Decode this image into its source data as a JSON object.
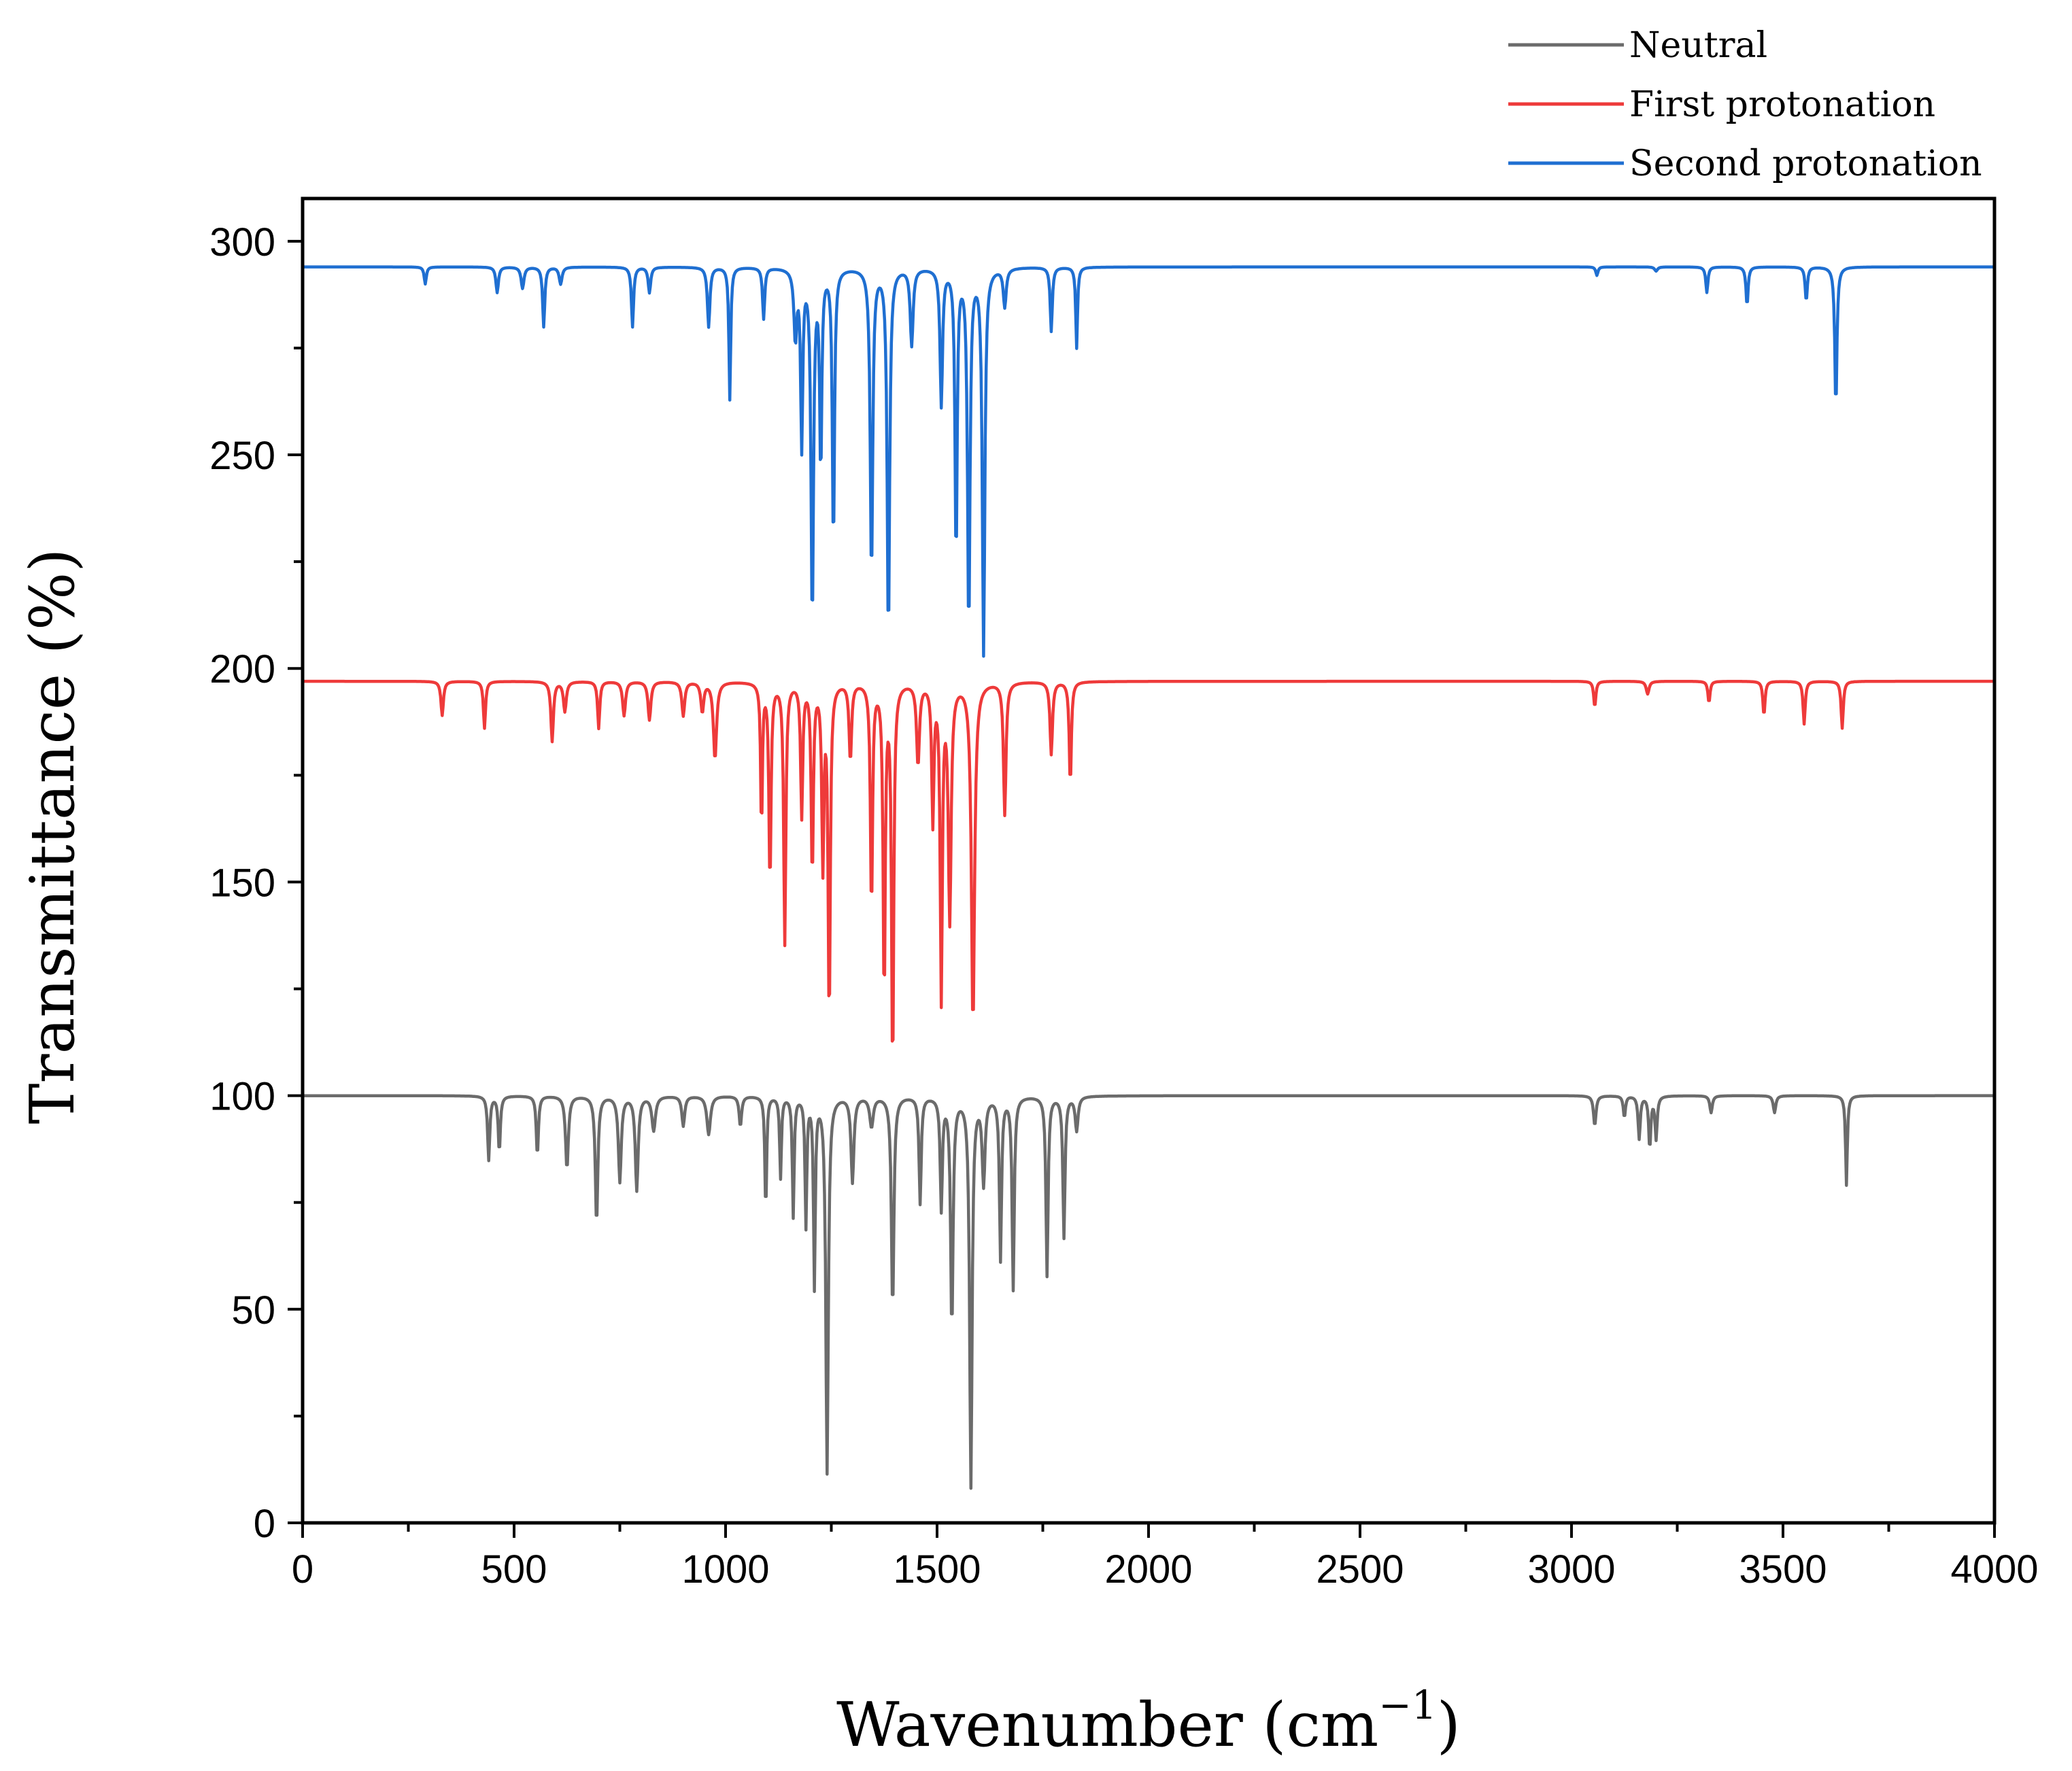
{
  "chart_data": {
    "type": "line",
    "title": "",
    "xlabel": "Wavenumber (cm",
    "xlabel_sup": "−1",
    "xlabel_close": ")",
    "ylabel": "Transmittance (%)",
    "xlim": [
      0,
      4000
    ],
    "ylim": [
      0,
      310
    ],
    "xticks": [
      0,
      500,
      1000,
      1500,
      2000,
      2500,
      3000,
      3500,
      4000
    ],
    "yticks": [
      0,
      50,
      100,
      150,
      200,
      250,
      300
    ],
    "legend_position": "top-right, above plot",
    "series": [
      {
        "name": "Neutral",
        "color": "#6b6b6b",
        "baseline": 100,
        "peaks": [
          [
            440,
            85,
            6
          ],
          [
            465,
            87,
            6
          ],
          [
            555,
            86,
            6
          ],
          [
            625,
            83,
            8
          ],
          [
            695,
            70,
            7
          ],
          [
            750,
            80,
            8
          ],
          [
            790,
            78,
            8
          ],
          [
            830,
            92,
            10
          ],
          [
            900,
            93,
            8
          ],
          [
            960,
            91,
            10
          ],
          [
            1035,
            93,
            7
          ],
          [
            1095,
            73,
            5
          ],
          [
            1130,
            81,
            5
          ],
          [
            1160,
            72,
            5
          ],
          [
            1190,
            70,
            5
          ],
          [
            1210,
            56,
            5
          ],
          [
            1240,
            12,
            7
          ],
          [
            1300,
            80,
            8
          ],
          [
            1345,
            93,
            10
          ],
          [
            1395,
            50,
            7
          ],
          [
            1460,
            75,
            6
          ],
          [
            1510,
            74,
            6
          ],
          [
            1535,
            46,
            7
          ],
          [
            1580,
            9,
            7
          ],
          [
            1610,
            80,
            8
          ],
          [
            1650,
            62,
            6
          ],
          [
            1680,
            55,
            6
          ],
          [
            1760,
            58,
            6
          ],
          [
            1800,
            67,
            6
          ],
          [
            1830,
            92,
            8
          ],
          [
            3055,
            93,
            7
          ],
          [
            3125,
            95,
            6
          ],
          [
            3160,
            90,
            6
          ],
          [
            3185,
            88,
            6
          ],
          [
            3200,
            90,
            6
          ],
          [
            3330,
            96,
            7
          ],
          [
            3480,
            96,
            7
          ],
          [
            3650,
            79,
            5
          ]
        ]
      },
      {
        "name": "First protonation",
        "color": "#ee3a3a",
        "baseline": 197,
        "peaks": [
          [
            330,
            189,
            7
          ],
          [
            430,
            186,
            6
          ],
          [
            590,
            183,
            7
          ],
          [
            620,
            190,
            8
          ],
          [
            700,
            186,
            6
          ],
          [
            760,
            189,
            8
          ],
          [
            820,
            188,
            8
          ],
          [
            900,
            189,
            8
          ],
          [
            945,
            190,
            8
          ],
          [
            975,
            179,
            9
          ],
          [
            1085,
            163,
            5
          ],
          [
            1105,
            150,
            6
          ],
          [
            1140,
            136,
            6
          ],
          [
            1180,
            166,
            6
          ],
          [
            1205,
            152,
            6
          ],
          [
            1230,
            155,
            6
          ],
          [
            1245,
            118,
            6
          ],
          [
            1295,
            179,
            7
          ],
          [
            1345,
            144,
            6
          ],
          [
            1375,
            124,
            6
          ],
          [
            1395,
            106,
            6
          ],
          [
            1455,
            178,
            8
          ],
          [
            1490,
            165,
            6
          ],
          [
            1510,
            124,
            6
          ],
          [
            1530,
            142,
            8
          ],
          [
            1585,
            117,
            9
          ],
          [
            1660,
            166,
            7
          ],
          [
            1770,
            180,
            7
          ],
          [
            1815,
            173,
            6
          ],
          [
            3055,
            191,
            6
          ],
          [
            3180,
            194,
            8
          ],
          [
            3325,
            192,
            6
          ],
          [
            3455,
            189,
            6
          ],
          [
            3550,
            187,
            6
          ],
          [
            3640,
            186,
            6
          ]
        ]
      },
      {
        "name": "Second protonation",
        "color": "#1f6fd1",
        "baseline": 294,
        "peaks": [
          [
            290,
            290,
            6
          ],
          [
            460,
            288,
            7
          ],
          [
            520,
            289,
            8
          ],
          [
            570,
            280,
            6
          ],
          [
            610,
            290,
            8
          ],
          [
            780,
            280,
            6
          ],
          [
            820,
            288,
            7
          ],
          [
            960,
            280,
            7
          ],
          [
            1010,
            263,
            5
          ],
          [
            1090,
            282,
            6
          ],
          [
            1165,
            278,
            8
          ],
          [
            1180,
            253,
            6
          ],
          [
            1205,
            212,
            7
          ],
          [
            1225,
            248,
            6
          ],
          [
            1255,
            229,
            6
          ],
          [
            1345,
            222,
            7
          ],
          [
            1385,
            208,
            7
          ],
          [
            1440,
            276,
            8
          ],
          [
            1510,
            262,
            7
          ],
          [
            1545,
            226,
            6
          ],
          [
            1575,
            210,
            7
          ],
          [
            1610,
            204,
            7
          ],
          [
            1660,
            285,
            8
          ],
          [
            1770,
            279,
            6
          ],
          [
            1830,
            275,
            5
          ],
          [
            3060,
            292,
            6
          ],
          [
            3200,
            293,
            8
          ],
          [
            3320,
            288,
            6
          ],
          [
            3415,
            285,
            6
          ],
          [
            3555,
            286,
            6
          ],
          [
            3625,
            261,
            6
          ]
        ]
      }
    ]
  }
}
